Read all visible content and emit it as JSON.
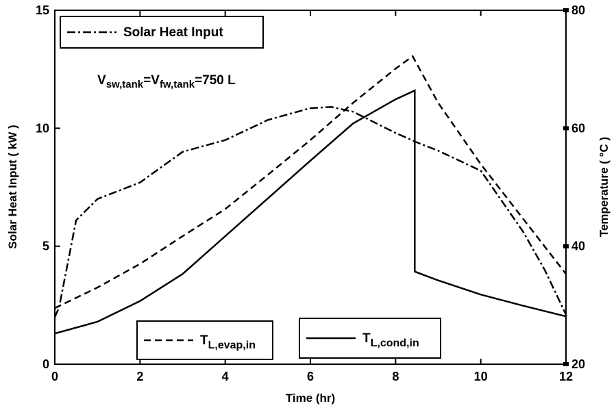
{
  "chart_data": {
    "type": "line",
    "xlabel": "Time (hr)",
    "ylabel": "Solar Heat Input ( kW )",
    "y2label": "Temperature (  °C )",
    "annotation": [
      "V",
      "sw,tank",
      "=V",
      "fw,tank",
      "=750 L"
    ],
    "xlim": [
      0,
      12
    ],
    "xticks": [
      0,
      2,
      4,
      6,
      8,
      10,
      12
    ],
    "ylim": [
      0,
      15
    ],
    "yticks": [
      0,
      5,
      10,
      15
    ],
    "y2lim": [
      20,
      80
    ],
    "y2ticks": [
      20,
      40,
      60,
      80
    ],
    "series": [
      {
        "name": "Solar Heat Input",
        "color": "#000000",
        "style": "dashdot",
        "x": [
          0,
          0.1,
          0.5,
          1,
          2,
          3,
          4,
          5,
          6,
          6.5,
          7,
          8,
          8.5,
          9,
          10,
          11,
          11.5,
          12
        ],
        "values": [
          2.0,
          2.4,
          6.1,
          7.0,
          7.7,
          9.0,
          9.5,
          10.35,
          10.85,
          10.9,
          10.7,
          9.8,
          9.4,
          9.05,
          8.2,
          5.6,
          4.0,
          2.1
        ]
      },
      {
        "name": "T",
        "name_sub": "L,evap,in",
        "color": "#000000",
        "style": "dashed",
        "axis": "y2",
        "x": [
          0,
          1,
          2,
          3,
          4,
          5,
          6,
          7,
          8,
          8.4,
          9,
          10,
          11,
          12
        ],
        "values": [
          29.5,
          33,
          37,
          41.7,
          46.3,
          52.1,
          58,
          64.3,
          70.1,
          72.2,
          64.3,
          53.9,
          44.6,
          35.3
        ]
      },
      {
        "name": "T",
        "name_sub": "L,cond,in",
        "color": "#000000",
        "style": "solid",
        "axis": "y2",
        "x": [
          0,
          1,
          2,
          3,
          4,
          5,
          6,
          7,
          8,
          8.45,
          8.45,
          9,
          10,
          11,
          12
        ],
        "values": [
          25.2,
          27.2,
          30.7,
          35.3,
          41.7,
          48.1,
          54.5,
          60.8,
          64.9,
          66.4,
          35.7,
          34.2,
          31.8,
          29.9,
          28.1
        ]
      }
    ]
  }
}
